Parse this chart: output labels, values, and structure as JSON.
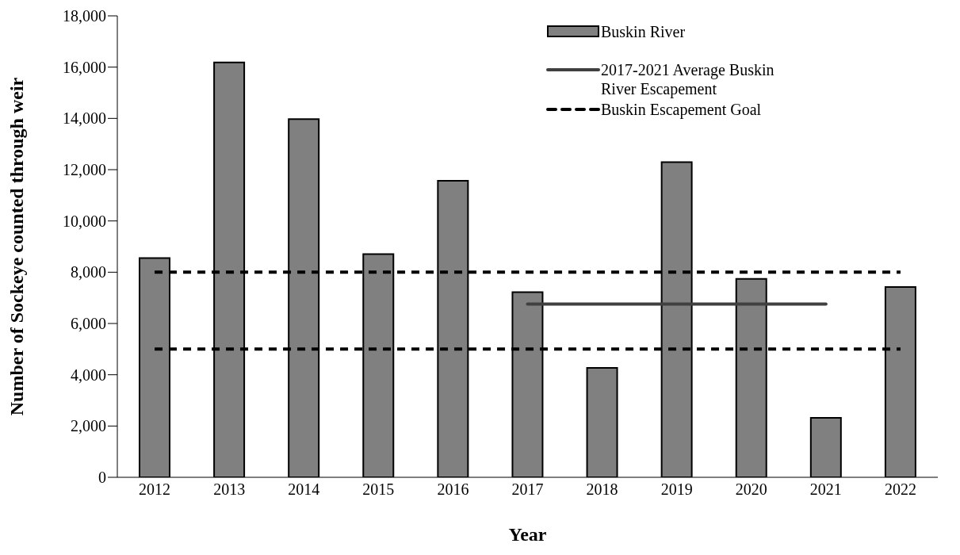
{
  "chart_data": {
    "type": "bar",
    "xlabel": "Year",
    "ylabel": "Number of Sockeye counted through weir",
    "categories": [
      "2012",
      "2013",
      "2014",
      "2015",
      "2016",
      "2017",
      "2018",
      "2019",
      "2020",
      "2021",
      "2022"
    ],
    "series": [
      {
        "name": "Buskin River",
        "color": "#808080",
        "values": [
          8550,
          16180,
          13970,
          8710,
          11570,
          7220,
          4270,
          12290,
          7740,
          2320,
          7420
        ]
      },
      {
        "name": "2017-2021 Average Buskin River Escapement",
        "type": "line",
        "color": "#404040",
        "line_style": "solid",
        "values": [
          null,
          null,
          null,
          null,
          null,
          6760,
          6760,
          6760,
          6760,
          6760,
          null
        ]
      },
      {
        "name": "Buskin Escapement Goal",
        "type": "line",
        "color": "#000000",
        "line_style": "dashed",
        "values": [
          8000,
          8000,
          8000,
          8000,
          8000,
          8000,
          8000,
          8000,
          8000,
          8000,
          8000
        ]
      },
      {
        "type": "line",
        "color": "#000000",
        "line_style": "dashed",
        "values": [
          5000,
          5000,
          5000,
          5000,
          5000,
          5000,
          5000,
          5000,
          5000,
          5000,
          5000
        ]
      }
    ],
    "ylim": [
      0,
      18000
    ],
    "yticks": [
      0,
      {
        "value": 2000,
        "label": "2,000"
      },
      {
        "value": 4000,
        "label": "4,000"
      },
      {
        "value": 6000,
        "label": "6,000"
      },
      {
        "value": 8000,
        "label": "8,000"
      },
      {
        "value": 10000,
        "label": "10,000"
      },
      {
        "value": 12000,
        "label": "12,000"
      },
      {
        "value": 14000,
        "label": "14,000"
      },
      {
        "value": 16000,
        "label": "16,000"
      },
      {
        "value": 18000,
        "label": "18,000"
      }
    ],
    "grid": false,
    "legend": "top right"
  }
}
